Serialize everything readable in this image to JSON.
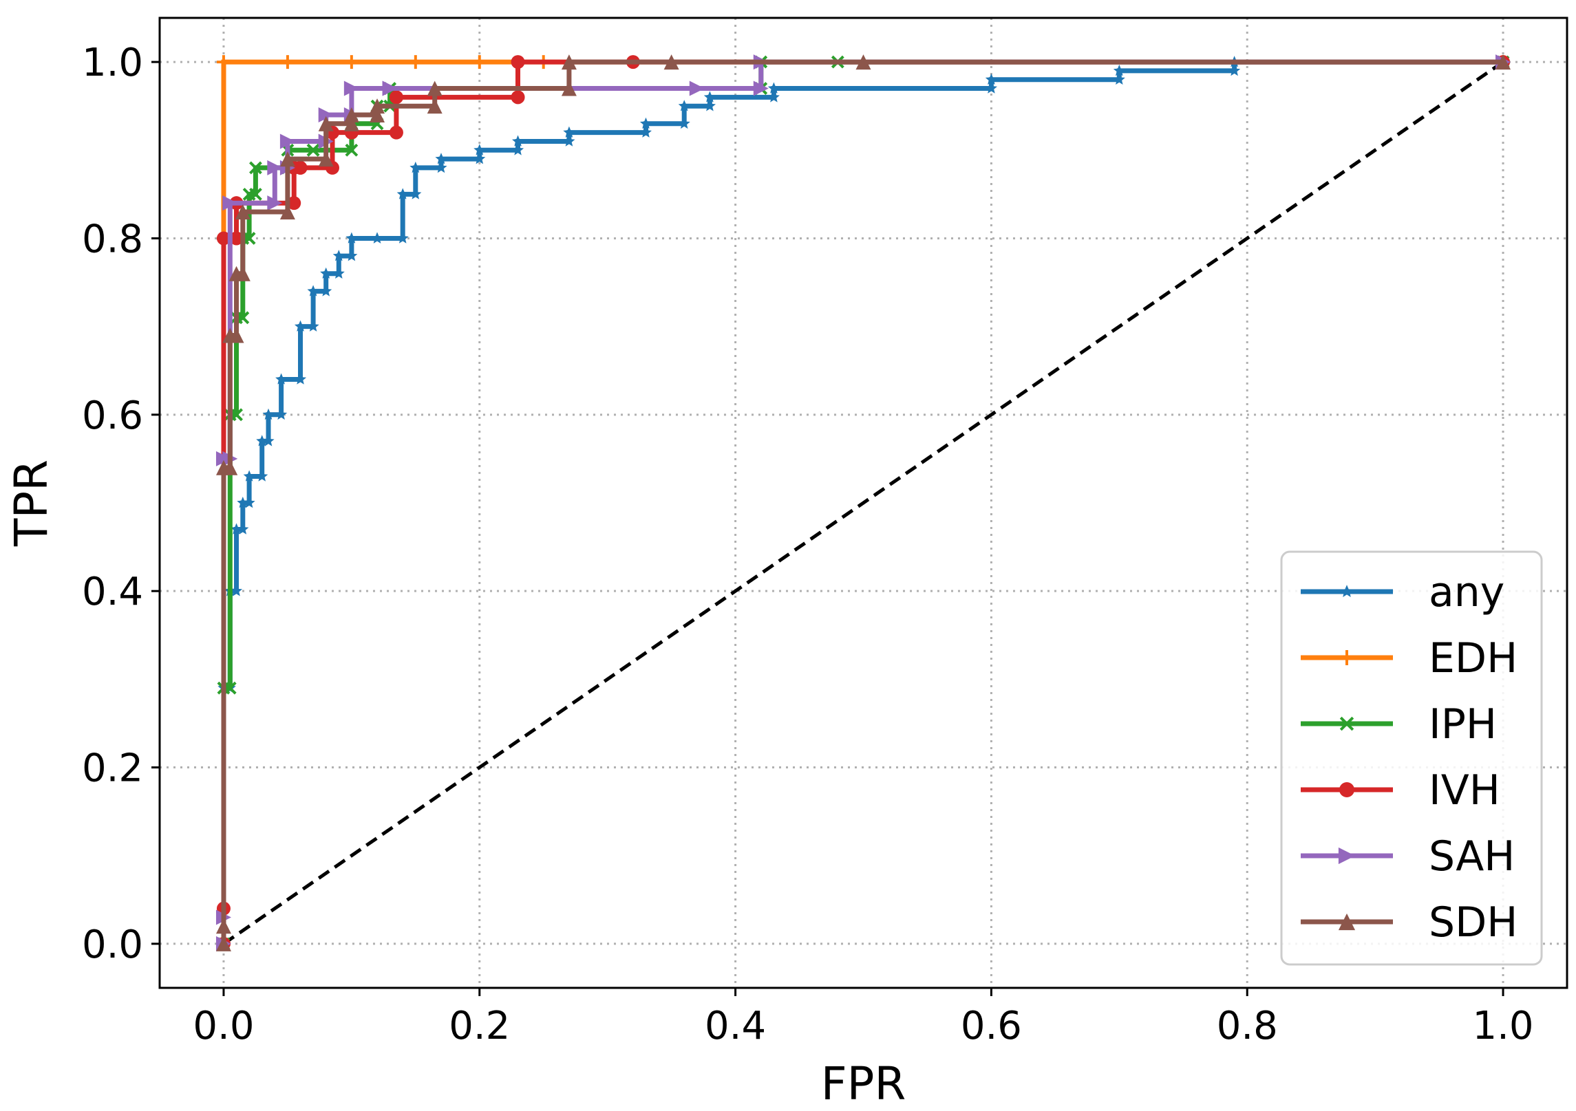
{
  "chart_data": {
    "type": "line",
    "title": "",
    "xlabel": "FPR",
    "ylabel": "TPR",
    "xlim": [
      -0.05,
      1.05
    ],
    "ylim": [
      -0.05,
      1.05
    ],
    "xticks": [
      0.0,
      0.2,
      0.4,
      0.6,
      0.8,
      1.0
    ],
    "yticks": [
      0.0,
      0.2,
      0.4,
      0.6,
      0.8,
      1.0
    ],
    "xtick_labels": [
      "0.0",
      "0.2",
      "0.4",
      "0.6",
      "0.8",
      "1.0"
    ],
    "ytick_labels": [
      "0.0",
      "0.2",
      "0.4",
      "0.6",
      "0.8",
      "1.0"
    ],
    "grid": true,
    "legend_position": "lower-right",
    "chance_line": {
      "x": [
        0,
        1
      ],
      "y": [
        0,
        1
      ],
      "style": "dashed",
      "color": "#000000"
    },
    "series": [
      {
        "name": "any",
        "color": "#1f77b4",
        "marker": "star",
        "x": [
          0,
          0,
          0.005,
          0.005,
          0.01,
          0.01,
          0.015,
          0.015,
          0.02,
          0.02,
          0.03,
          0.03,
          0.035,
          0.035,
          0.045,
          0.045,
          0.06,
          0.06,
          0.07,
          0.07,
          0.08,
          0.08,
          0.09,
          0.09,
          0.1,
          0.1,
          0.12,
          0.12,
          0.14,
          0.14,
          0.15,
          0.15,
          0.17,
          0.17,
          0.2,
          0.2,
          0.23,
          0.23,
          0.27,
          0.27,
          0.33,
          0.33,
          0.36,
          0.36,
          0.38,
          0.38,
          0.43,
          0.43,
          0.6,
          0.6,
          0.7,
          0.7,
          0.79,
          0.79,
          1.0
        ],
        "y": [
          0,
          0.29,
          0.29,
          0.4,
          0.4,
          0.47,
          0.47,
          0.5,
          0.5,
          0.53,
          0.53,
          0.57,
          0.57,
          0.6,
          0.6,
          0.64,
          0.64,
          0.7,
          0.7,
          0.74,
          0.74,
          0.76,
          0.76,
          0.78,
          0.78,
          0.8,
          0.8,
          0.8,
          0.8,
          0.85,
          0.85,
          0.88,
          0.88,
          0.89,
          0.89,
          0.9,
          0.9,
          0.91,
          0.91,
          0.92,
          0.92,
          0.93,
          0.93,
          0.95,
          0.95,
          0.96,
          0.96,
          0.97,
          0.97,
          0.98,
          0.98,
          0.99,
          0.99,
          1.0,
          1.0
        ]
      },
      {
        "name": "EDH",
        "color": "#ff7f0e",
        "marker": "plus",
        "x": [
          0,
          0,
          0.0,
          0.05,
          0.1,
          0.15,
          0.2,
          0.25,
          1.0
        ],
        "y": [
          0,
          0.8,
          1.0,
          1.0,
          1.0,
          1.0,
          1.0,
          1.0,
          1.0
        ]
      },
      {
        "name": "IPH",
        "color": "#2ca02c",
        "marker": "x",
        "x": [
          0,
          0,
          0.005,
          0.005,
          0.01,
          0.01,
          0.015,
          0.015,
          0.02,
          0.02,
          0.025,
          0.025,
          0.05,
          0.05,
          0.07,
          0.07,
          0.1,
          0.1,
          0.12,
          0.12,
          0.13,
          0.13,
          0.42,
          0.42,
          0.48,
          1.0
        ],
        "y": [
          0,
          0.29,
          0.29,
          0.6,
          0.6,
          0.71,
          0.71,
          0.8,
          0.8,
          0.85,
          0.85,
          0.88,
          0.88,
          0.9,
          0.9,
          0.9,
          0.9,
          0.93,
          0.93,
          0.95,
          0.95,
          0.97,
          0.97,
          1.0,
          1.0,
          1.0
        ]
      },
      {
        "name": "IVH",
        "color": "#d62728",
        "marker": "circle",
        "x": [
          0,
          0,
          0.0,
          0.01,
          0.01,
          0.055,
          0.055,
          0.06,
          0.06,
          0.085,
          0.085,
          0.1,
          0.1,
          0.135,
          0.135,
          0.23,
          0.23,
          0.32,
          1.0
        ],
        "y": [
          0,
          0.04,
          0.8,
          0.8,
          0.84,
          0.84,
          0.88,
          0.88,
          0.88,
          0.88,
          0.92,
          0.92,
          0.92,
          0.92,
          0.96,
          0.96,
          1.0,
          1.0,
          1.0
        ]
      },
      {
        "name": "SAH",
        "color": "#9467bd",
        "marker": "triangle-right",
        "x": [
          0,
          0,
          0.0,
          0.005,
          0.005,
          0.04,
          0.04,
          0.05,
          0.05,
          0.08,
          0.08,
          0.1,
          0.1,
          0.13,
          0.13,
          0.37,
          0.42,
          0.42,
          1.0
        ],
        "y": [
          0,
          0.03,
          0.55,
          0.55,
          0.84,
          0.84,
          0.88,
          0.88,
          0.91,
          0.91,
          0.94,
          0.94,
          0.97,
          0.97,
          0.97,
          0.97,
          0.97,
          1.0,
          1.0
        ]
      },
      {
        "name": "SDH",
        "color": "#8c564b",
        "marker": "triangle-up",
        "x": [
          0,
          0,
          0.0,
          0.005,
          0.005,
          0.01,
          0.01,
          0.015,
          0.015,
          0.05,
          0.05,
          0.08,
          0.08,
          0.1,
          0.1,
          0.12,
          0.12,
          0.165,
          0.165,
          0.27,
          0.27,
          0.35,
          0.5,
          1.0
        ],
        "y": [
          0,
          0.02,
          0.54,
          0.54,
          0.69,
          0.69,
          0.76,
          0.76,
          0.83,
          0.83,
          0.89,
          0.89,
          0.93,
          0.93,
          0.94,
          0.94,
          0.95,
          0.95,
          0.97,
          0.97,
          1.0,
          1.0,
          1.0,
          1.0
        ]
      }
    ]
  }
}
